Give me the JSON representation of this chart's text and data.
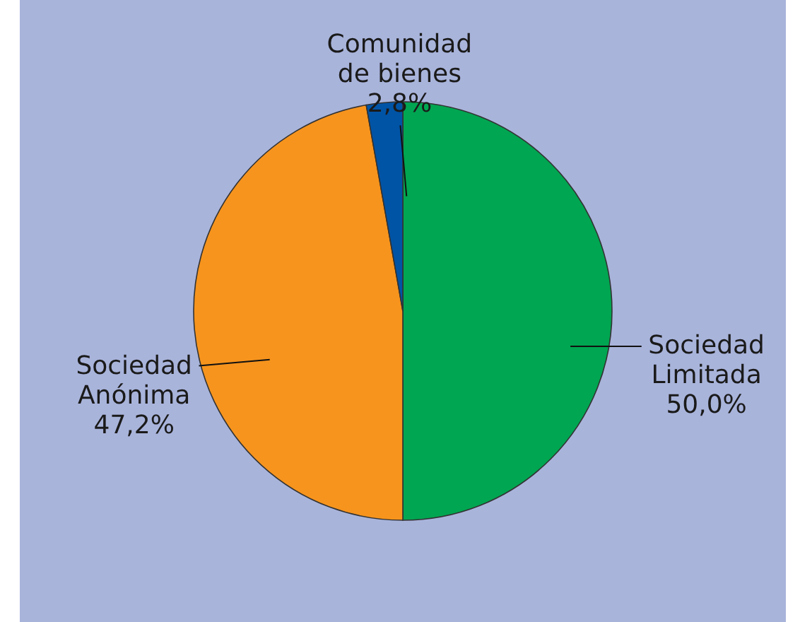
{
  "chart_data": {
    "type": "pie",
    "categories": [
      "Sociedad Limitada",
      "Sociedad Anónima",
      "Comunidad de bienes"
    ],
    "values": [
      50.0,
      47.2,
      2.8
    ],
    "colors": [
      "#00a651",
      "#f7941d",
      "#0054a6"
    ],
    "value_labels": [
      "50,0%",
      "47,2%",
      "2,8%"
    ]
  }
}
